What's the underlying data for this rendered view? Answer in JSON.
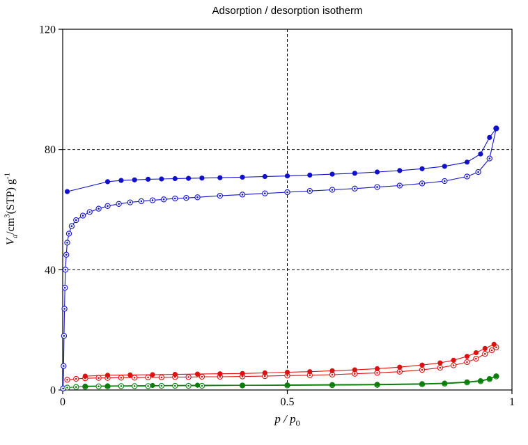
{
  "chart_data": {
    "type": "line",
    "title": "Adsorption / desorption isotherm",
    "xlabel": "p / p0",
    "ylabel": "Va/cm3(STP) g-1",
    "xlim": [
      0,
      1
    ],
    "ylim": [
      0,
      120
    ],
    "grid": {
      "x": [
        0.5
      ],
      "y": [
        40,
        80
      ],
      "style": "dashed"
    },
    "x_ticks": [
      {
        "v": 0,
        "label": "0"
      },
      {
        "v": 0.5,
        "label": "0.5"
      },
      {
        "v": 1,
        "label": "1"
      }
    ],
    "y_ticks": [
      {
        "v": 0,
        "label": "0"
      },
      {
        "v": 40,
        "label": "40"
      },
      {
        "v": 80,
        "label": "80"
      },
      {
        "v": 120,
        "label": "120"
      }
    ],
    "legend": "none",
    "series": [
      {
        "name": "blue-adsorption",
        "color": "#1111cc",
        "marker": "open-dot",
        "points": [
          [
            0.001,
            0.5
          ],
          [
            0.002,
            8
          ],
          [
            0.003,
            18
          ],
          [
            0.004,
            27
          ],
          [
            0.005,
            34
          ],
          [
            0.006,
            40
          ],
          [
            0.008,
            45
          ],
          [
            0.01,
            49
          ],
          [
            0.014,
            52
          ],
          [
            0.02,
            54.5
          ],
          [
            0.03,
            56.5
          ],
          [
            0.045,
            58
          ],
          [
            0.06,
            59.2
          ],
          [
            0.08,
            60.3
          ],
          [
            0.1,
            61.2
          ],
          [
            0.125,
            61.9
          ],
          [
            0.15,
            62.4
          ],
          [
            0.175,
            62.8
          ],
          [
            0.2,
            63.1
          ],
          [
            0.225,
            63.4
          ],
          [
            0.25,
            63.7
          ],
          [
            0.275,
            63.9
          ],
          [
            0.3,
            64.1
          ],
          [
            0.35,
            64.6
          ],
          [
            0.4,
            65.0
          ],
          [
            0.45,
            65.4
          ],
          [
            0.5,
            65.8
          ],
          [
            0.55,
            66.2
          ],
          [
            0.6,
            66.6
          ],
          [
            0.65,
            67.0
          ],
          [
            0.7,
            67.5
          ],
          [
            0.75,
            68.0
          ],
          [
            0.8,
            68.7
          ],
          [
            0.85,
            69.5
          ],
          [
            0.9,
            71.0
          ],
          [
            0.925,
            72.5
          ],
          [
            0.95,
            77.0
          ],
          [
            0.965,
            87.0
          ]
        ]
      },
      {
        "name": "blue-desorption",
        "color": "#1111cc",
        "marker": "filled",
        "points": [
          [
            0.01,
            66.0
          ],
          [
            0.1,
            69.3
          ],
          [
            0.13,
            69.7
          ],
          [
            0.16,
            69.9
          ],
          [
            0.19,
            70.1
          ],
          [
            0.22,
            70.2
          ],
          [
            0.25,
            70.3
          ],
          [
            0.28,
            70.4
          ],
          [
            0.31,
            70.5
          ],
          [
            0.35,
            70.6
          ],
          [
            0.4,
            70.8
          ],
          [
            0.45,
            71.0
          ],
          [
            0.5,
            71.2
          ],
          [
            0.55,
            71.5
          ],
          [
            0.6,
            71.8
          ],
          [
            0.65,
            72.1
          ],
          [
            0.7,
            72.5
          ],
          [
            0.75,
            73.0
          ],
          [
            0.8,
            73.6
          ],
          [
            0.85,
            74.4
          ],
          [
            0.9,
            75.8
          ],
          [
            0.93,
            78.5
          ],
          [
            0.95,
            84.0
          ],
          [
            0.965,
            87.0
          ]
        ]
      },
      {
        "name": "red-adsorption",
        "color": "#dd1111",
        "marker": "open-dot",
        "points": [
          [
            0.01,
            3.4
          ],
          [
            0.03,
            3.7
          ],
          [
            0.05,
            3.9
          ],
          [
            0.08,
            4.0
          ],
          [
            0.1,
            4.0
          ],
          [
            0.13,
            4.1
          ],
          [
            0.16,
            4.1
          ],
          [
            0.19,
            4.2
          ],
          [
            0.22,
            4.2
          ],
          [
            0.25,
            4.3
          ],
          [
            0.28,
            4.3
          ],
          [
            0.31,
            4.4
          ],
          [
            0.35,
            4.4
          ],
          [
            0.4,
            4.5
          ],
          [
            0.45,
            4.6
          ],
          [
            0.5,
            4.8
          ],
          [
            0.55,
            4.9
          ],
          [
            0.6,
            5.1
          ],
          [
            0.65,
            5.4
          ],
          [
            0.7,
            5.7
          ],
          [
            0.75,
            6.1
          ],
          [
            0.8,
            6.7
          ],
          [
            0.84,
            7.4
          ],
          [
            0.87,
            8.2
          ],
          [
            0.9,
            9.3
          ],
          [
            0.92,
            10.4
          ],
          [
            0.94,
            12.0
          ],
          [
            0.955,
            13.2
          ],
          [
            0.965,
            14.2
          ]
        ]
      },
      {
        "name": "red-desorption",
        "color": "#dd1111",
        "marker": "filled",
        "points": [
          [
            0.05,
            4.6
          ],
          [
            0.1,
            4.9
          ],
          [
            0.15,
            5.0
          ],
          [
            0.2,
            5.1
          ],
          [
            0.25,
            5.2
          ],
          [
            0.3,
            5.3
          ],
          [
            0.35,
            5.4
          ],
          [
            0.4,
            5.5
          ],
          [
            0.45,
            5.7
          ],
          [
            0.5,
            5.9
          ],
          [
            0.55,
            6.1
          ],
          [
            0.6,
            6.4
          ],
          [
            0.65,
            6.7
          ],
          [
            0.7,
            7.1
          ],
          [
            0.75,
            7.6
          ],
          [
            0.8,
            8.3
          ],
          [
            0.84,
            9.0
          ],
          [
            0.87,
            9.9
          ],
          [
            0.9,
            11.2
          ],
          [
            0.92,
            12.4
          ],
          [
            0.94,
            13.8
          ],
          [
            0.96,
            15.2
          ]
        ]
      },
      {
        "name": "green-adsorption",
        "color": "#0a7d0a",
        "marker": "open-dot",
        "points": [
          [
            0.01,
            0.8
          ],
          [
            0.03,
            1.0
          ],
          [
            0.05,
            1.1
          ],
          [
            0.08,
            1.2
          ],
          [
            0.1,
            1.2
          ],
          [
            0.13,
            1.3
          ],
          [
            0.16,
            1.3
          ],
          [
            0.19,
            1.3
          ],
          [
            0.22,
            1.4
          ],
          [
            0.25,
            1.4
          ],
          [
            0.28,
            1.4
          ],
          [
            0.31,
            1.4
          ],
          [
            0.4,
            1.5
          ],
          [
            0.5,
            1.5
          ],
          [
            0.6,
            1.6
          ],
          [
            0.7,
            1.7
          ],
          [
            0.8,
            1.9
          ],
          [
            0.85,
            2.1
          ],
          [
            0.9,
            2.5
          ],
          [
            0.93,
            2.9
          ],
          [
            0.95,
            3.6
          ],
          [
            0.965,
            4.5
          ]
        ]
      },
      {
        "name": "green-desorption",
        "color": "#0a7d0a",
        "marker": "filled",
        "points": [
          [
            0.05,
            1.3
          ],
          [
            0.1,
            1.4
          ],
          [
            0.2,
            1.5
          ],
          [
            0.3,
            1.6
          ],
          [
            0.4,
            1.6
          ],
          [
            0.5,
            1.7
          ],
          [
            0.6,
            1.8
          ],
          [
            0.7,
            1.9
          ],
          [
            0.8,
            2.1
          ],
          [
            0.85,
            2.3
          ],
          [
            0.9,
            2.7
          ],
          [
            0.93,
            3.1
          ],
          [
            0.95,
            3.8
          ],
          [
            0.965,
            4.7
          ]
        ]
      }
    ]
  },
  "labels": {
    "title": "Adsorption / desorption isotherm",
    "x_main": "p / p",
    "x_sub": "0",
    "y_v": "V",
    "y_a": "a",
    "y_mid": "/cm",
    "y_sup3": "3",
    "y_stp": "(STP) g",
    "y_supm1": "-1"
  },
  "style": {
    "axis_color": "#000000",
    "grid_color": "#000000",
    "background": "#ffffff"
  }
}
